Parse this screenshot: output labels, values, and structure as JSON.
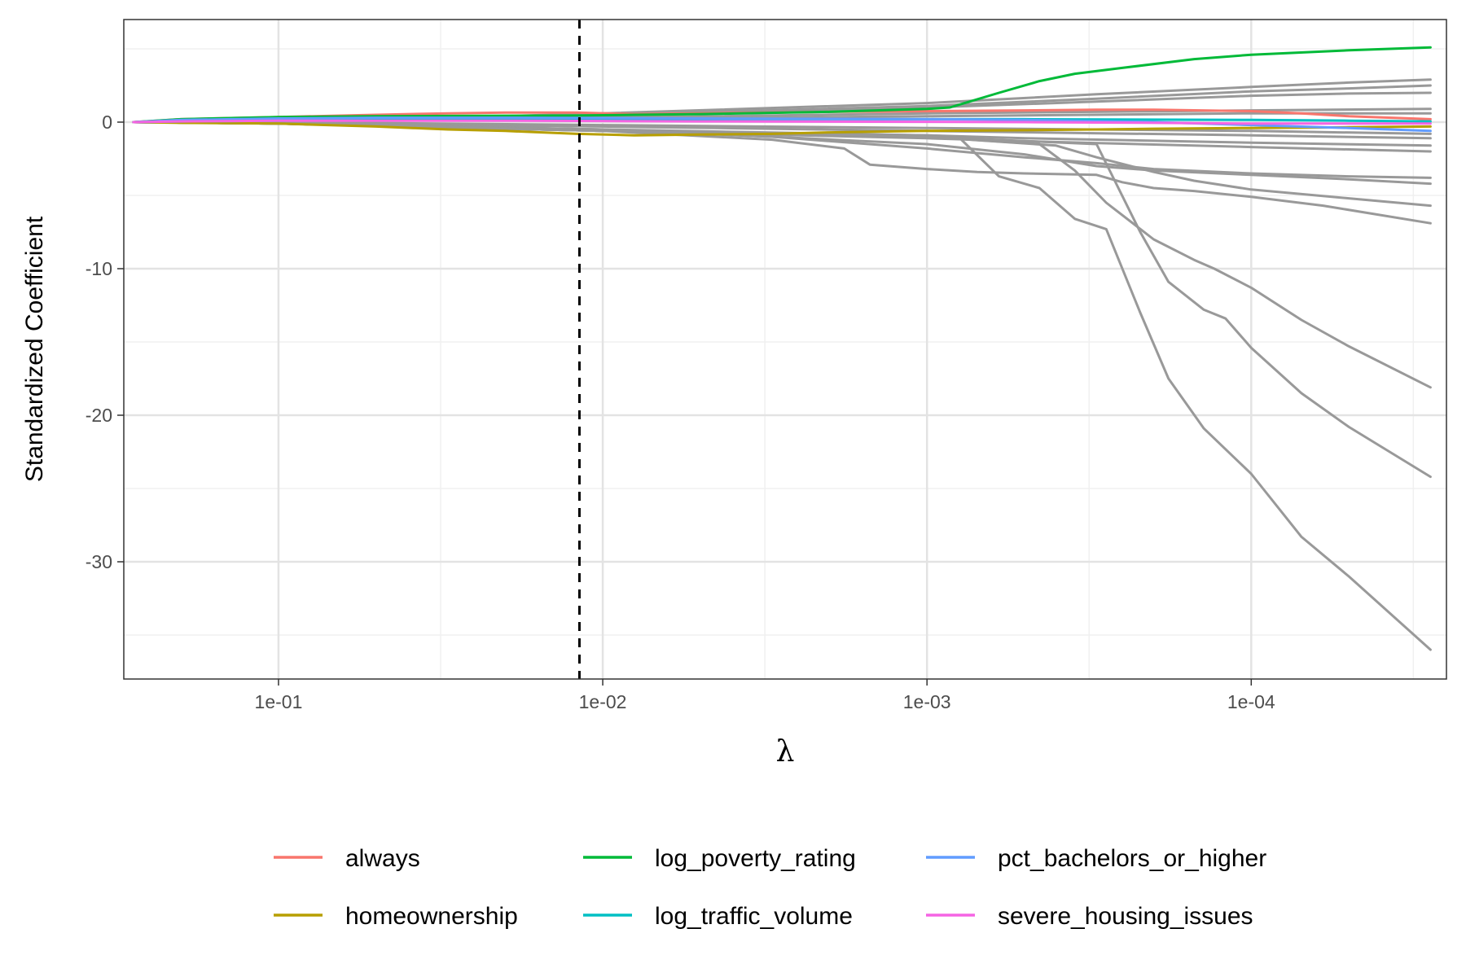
{
  "chart_data": {
    "type": "line",
    "title": "",
    "xlabel": "λ",
    "ylabel": "Standardized Coefficient",
    "x_scale": "log-reversed",
    "xlim": [
      0.3,
      2.5e-05
    ],
    "ylim": [
      -38,
      7
    ],
    "grid": true,
    "legend_position": "bottom",
    "x_ticks": [
      {
        "value": 0.1,
        "label": "1e-01"
      },
      {
        "value": 0.01,
        "label": "1e-02"
      },
      {
        "value": 0.001,
        "label": "1e-03"
      },
      {
        "value": 0.0001,
        "label": "1e-04"
      }
    ],
    "y_ticks": [
      {
        "value": 0,
        "label": "0"
      },
      {
        "value": -10,
        "label": "-10"
      },
      {
        "value": -20,
        "label": "-20"
      },
      {
        "value": -30,
        "label": "-30"
      }
    ],
    "vline": {
      "x": 0.0118,
      "style": "dashed"
    },
    "series": [
      {
        "name": "always",
        "color": "#F8766D",
        "highlight": true,
        "x": [
          0.28,
          0.2,
          0.1,
          0.05,
          0.03,
          0.02,
          0.012,
          0.008,
          0.005,
          0.003,
          0.002,
          0.001,
          0.0005,
          0.0003,
          0.0002,
          0.0001,
          7e-05,
          5e-05,
          2.8e-05
        ],
        "y": [
          0,
          0.2,
          0.35,
          0.5,
          0.6,
          0.65,
          0.65,
          0.55,
          0.6,
          0.65,
          0.7,
          0.75,
          0.8,
          0.85,
          0.85,
          0.75,
          0.6,
          0.4,
          0.2
        ]
      },
      {
        "name": "homeownership",
        "color": "#B79F00",
        "highlight": true,
        "x": [
          0.28,
          0.2,
          0.1,
          0.05,
          0.03,
          0.02,
          0.012,
          0.008,
          0.005,
          0.003,
          0.002,
          0.001,
          0.0005,
          0.0003,
          0.0002,
          0.0001,
          5e-05,
          2.8e-05
        ],
        "y": [
          0,
          -0.05,
          -0.1,
          -0.3,
          -0.5,
          -0.6,
          -0.8,
          -0.9,
          -0.85,
          -0.8,
          -0.7,
          -0.6,
          -0.55,
          -0.5,
          -0.45,
          -0.4,
          -0.35,
          -0.3
        ]
      },
      {
        "name": "log_poverty_rating",
        "color": "#00BA38",
        "highlight": true,
        "x": [
          0.28,
          0.2,
          0.1,
          0.05,
          0.03,
          0.02,
          0.012,
          0.008,
          0.005,
          0.002,
          0.001,
          0.00085,
          0.0006,
          0.00045,
          0.00035,
          0.00025,
          0.00015,
          0.0001,
          5e-05,
          2.8e-05
        ],
        "y": [
          0,
          0.2,
          0.35,
          0.4,
          0.42,
          0.44,
          0.45,
          0.5,
          0.55,
          0.7,
          0.9,
          1.0,
          2.0,
          2.8,
          3.3,
          3.7,
          4.3,
          4.6,
          4.9,
          5.1
        ]
      },
      {
        "name": "log_traffic_volume",
        "color": "#00BFC4",
        "highlight": true,
        "x": [
          0.28,
          0.2,
          0.1,
          0.05,
          0.01,
          0.005,
          0.001,
          0.0005,
          0.0001,
          5e-05,
          2.8e-05
        ],
        "y": [
          0,
          0.05,
          0.1,
          0.15,
          0.2,
          0.2,
          0.2,
          0.2,
          0.15,
          0.1,
          0.05
        ]
      },
      {
        "name": "pct_bachelors_or_higher",
        "color": "#619CFF",
        "highlight": true,
        "x": [
          0.28,
          0.2,
          0.1,
          0.05,
          0.02,
          0.01,
          0.005,
          0.001,
          0.0005,
          0.0002,
          0.0001,
          5e-05,
          2.8e-05
        ],
        "y": [
          0,
          0.15,
          0.25,
          0.3,
          0.3,
          0.28,
          0.25,
          0.2,
          0.15,
          0.0,
          -0.2,
          -0.4,
          -0.6
        ]
      },
      {
        "name": "severe_housing_issues",
        "color": "#F564E3",
        "highlight": true,
        "x": [
          0.28,
          0.2,
          0.1,
          0.05,
          0.02,
          0.01,
          0.005,
          0.001,
          0.0005,
          0.0002,
          0.0001,
          5e-05,
          2.8e-05
        ],
        "y": [
          0,
          0.05,
          0.1,
          0.1,
          0.1,
          0.08,
          0.05,
          0.02,
          0.0,
          -0.05,
          -0.1,
          -0.1,
          -0.1
        ]
      },
      {
        "name": "",
        "color": "#999999",
        "highlight": false,
        "x": [
          0.28,
          0.1,
          0.03,
          0.01,
          0.001,
          0.0003,
          0.0001,
          5e-05,
          2.8e-05
        ],
        "y": [
          0,
          0.1,
          0.3,
          0.6,
          1.3,
          1.9,
          2.4,
          2.7,
          2.9
        ]
      },
      {
        "name": "",
        "color": "#999999",
        "highlight": false,
        "x": [
          0.28,
          0.1,
          0.03,
          0.01,
          0.001,
          0.0003,
          0.0001,
          5e-05,
          2.8e-05
        ],
        "y": [
          0,
          0.1,
          0.25,
          0.5,
          1.1,
          1.6,
          2.1,
          2.3,
          2.5
        ]
      },
      {
        "name": "",
        "color": "#999999",
        "highlight": false,
        "x": [
          0.28,
          0.1,
          0.03,
          0.01,
          0.001,
          0.0003,
          0.0001,
          5e-05,
          2.8e-05
        ],
        "y": [
          0,
          0.05,
          0.2,
          0.4,
          1.0,
          1.4,
          1.8,
          1.95,
          2.0
        ]
      },
      {
        "name": "",
        "color": "#999999",
        "highlight": false,
        "x": [
          0.28,
          0.1,
          0.01,
          0.001,
          0.0001,
          2.8e-05
        ],
        "y": [
          0,
          0.1,
          0.3,
          0.6,
          0.8,
          0.9
        ]
      },
      {
        "name": "",
        "color": "#999999",
        "highlight": false,
        "x": [
          0.28,
          0.1,
          0.01,
          0.001,
          0.0001,
          2.8e-05
        ],
        "y": [
          0,
          0.05,
          0.2,
          0.4,
          0.6,
          0.6
        ]
      },
      {
        "name": "",
        "color": "#999999",
        "highlight": false,
        "x": [
          0.28,
          0.1,
          0.01,
          0.001,
          0.0001,
          2.8e-05
        ],
        "y": [
          0,
          0.0,
          -0.2,
          -0.4,
          -0.6,
          -0.8
        ]
      },
      {
        "name": "",
        "color": "#999999",
        "highlight": false,
        "x": [
          0.28,
          0.1,
          0.01,
          0.001,
          0.0001,
          2.8e-05
        ],
        "y": [
          0,
          -0.05,
          -0.3,
          -0.6,
          -0.9,
          -1.1
        ]
      },
      {
        "name": "",
        "color": "#999999",
        "highlight": false,
        "x": [
          0.28,
          0.1,
          0.01,
          0.001,
          0.0005,
          0.0001,
          2.8e-05
        ],
        "y": [
          0,
          -0.1,
          -0.5,
          -0.9,
          -1.1,
          -1.4,
          -1.6
        ]
      },
      {
        "name": "",
        "color": "#999999",
        "highlight": false,
        "x": [
          0.28,
          0.1,
          0.01,
          0.001,
          0.0005,
          0.0001,
          2.8e-05
        ],
        "y": [
          0,
          -0.1,
          -0.6,
          -1.1,
          -1.3,
          -1.7,
          -2.0
        ]
      },
      {
        "name": "",
        "color": "#999999",
        "highlight": false,
        "x": [
          0.28,
          0.1,
          0.02,
          0.01,
          0.003,
          0.0018,
          0.0015,
          0.001,
          0.0007,
          0.0005,
          0.0003,
          0.00025,
          0.0002,
          0.00015,
          0.0001,
          6e-05,
          2.8e-05
        ],
        "y": [
          0,
          -0.05,
          -0.3,
          -0.6,
          -1.2,
          -1.8,
          -2.9,
          -3.2,
          -3.4,
          -3.5,
          -3.6,
          -4.1,
          -4.5,
          -4.7,
          -5.1,
          -5.7,
          -6.9
        ]
      },
      {
        "name": "",
        "color": "#999999",
        "highlight": false,
        "x": [
          0.28,
          0.1,
          0.01,
          0.003,
          0.001,
          0.0005,
          0.0003,
          0.0002,
          0.0001,
          5e-05,
          2.8e-05
        ],
        "y": [
          0,
          -0.1,
          -0.5,
          -1.0,
          -1.5,
          -2.2,
          -3.0,
          -3.3,
          -3.6,
          -3.9,
          -4.2
        ]
      },
      {
        "name": "",
        "color": "#999999",
        "highlight": false,
        "x": [
          0.28,
          0.1,
          0.01,
          0.003,
          0.001,
          0.0005,
          0.0003,
          0.0002,
          0.0001,
          5e-05,
          2.8e-05
        ],
        "y": [
          0,
          -0.1,
          -0.5,
          -1.0,
          -1.8,
          -2.4,
          -2.8,
          -3.2,
          -3.5,
          -3.7,
          -3.8
        ]
      },
      {
        "name": "",
        "color": "#999999",
        "highlight": false,
        "x": [
          0.28,
          0.1,
          0.01,
          0.001,
          0.0004,
          0.0003,
          0.0002,
          0.00015,
          0.0001,
          5e-05,
          2.8e-05
        ],
        "y": [
          0,
          -0.1,
          -0.6,
          -1.0,
          -1.6,
          -2.4,
          -3.4,
          -4.0,
          -4.6,
          -5.2,
          -5.7
        ]
      },
      {
        "name": "",
        "color": "#999999",
        "highlight": false,
        "x": [
          0.28,
          0.1,
          0.01,
          0.001,
          0.00045,
          0.00035,
          0.00028,
          0.0002,
          0.00015,
          0.00013,
          0.0001,
          7e-05,
          5e-05,
          2.8e-05
        ],
        "y": [
          0,
          -0.1,
          -0.6,
          -1.0,
          -1.5,
          -3.3,
          -5.5,
          -8.0,
          -9.4,
          -10.0,
          -11.3,
          -13.5,
          -15.3,
          -18.1
        ]
      },
      {
        "name": "",
        "color": "#999999",
        "highlight": false,
        "x": [
          0.28,
          0.1,
          0.01,
          0.001,
          0.0003,
          0.00022,
          0.00018,
          0.00014,
          0.00012,
          0.0001,
          7e-05,
          5e-05,
          2.8e-05
        ],
        "y": [
          0,
          -0.1,
          -0.6,
          -1.0,
          -1.5,
          -7.5,
          -10.9,
          -12.8,
          -13.4,
          -15.4,
          -18.5,
          -20.8,
          -24.2
        ]
      },
      {
        "name": "",
        "color": "#999999",
        "highlight": false,
        "x": [
          0.28,
          0.1,
          0.01,
          0.001,
          0.0008,
          0.0006,
          0.00045,
          0.00035,
          0.00028,
          0.00022,
          0.00018,
          0.00014,
          0.0001,
          7e-05,
          5e-05,
          2.8e-05
        ],
        "y": [
          0,
          -0.1,
          -0.6,
          -0.9,
          -1.0,
          -3.7,
          -4.5,
          -6.6,
          -7.3,
          -13.0,
          -17.5,
          -20.9,
          -24.0,
          -28.3,
          -31.0,
          -36.0
        ]
      }
    ]
  },
  "legend": {
    "items": [
      {
        "label": "always",
        "color": "#F8766D"
      },
      {
        "label": "homeownership",
        "color": "#B79F00"
      },
      {
        "label": "log_poverty_rating",
        "color": "#00BA38"
      },
      {
        "label": "log_traffic_volume",
        "color": "#00BFC4"
      },
      {
        "label": "pct_bachelors_or_higher",
        "color": "#619CFF"
      },
      {
        "label": "severe_housing_issues",
        "color": "#F564E3"
      }
    ]
  }
}
